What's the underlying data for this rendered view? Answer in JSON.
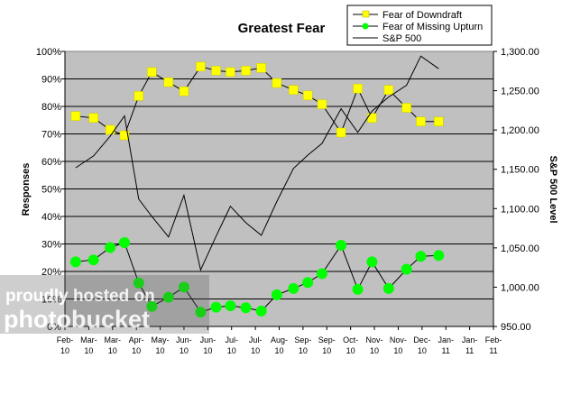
{
  "chart_data": {
    "type": "line",
    "title": "Greatest Fear",
    "ylabel": "Responses",
    "y2label": "S&P 500 Level",
    "ylim": [
      0,
      100
    ],
    "y2lim": [
      950,
      1300
    ],
    "y_ticks": [
      "0%",
      "10%",
      "20%",
      "30%",
      "40%",
      "50%",
      "60%",
      "70%",
      "80%",
      "90%",
      "100%"
    ],
    "y2_ticks": [
      "950.00",
      "1,000.00",
      "1,050.00",
      "1,100.00",
      "1,150.00",
      "1,200.00",
      "1,250.00",
      "1,300.00"
    ],
    "x_ticks": [
      [
        "Feb-",
        "10"
      ],
      [
        "Mar-",
        "10"
      ],
      [
        "Mar-",
        "10"
      ],
      [
        "Apr-",
        "10"
      ],
      [
        "May-",
        "10"
      ],
      [
        "Jun-",
        "10"
      ],
      [
        "Jun-",
        "10"
      ],
      [
        "Jul-",
        "10"
      ],
      [
        "Jul-",
        "10"
      ],
      [
        "Aug-",
        "10"
      ],
      [
        "Sep-",
        "10"
      ],
      [
        "Sep-",
        "10"
      ],
      [
        "Oct-",
        "10"
      ],
      [
        "Nov-",
        "10"
      ],
      [
        "Nov-",
        "10"
      ],
      [
        "Dec-",
        "10"
      ],
      [
        "Jan-",
        "11"
      ],
      [
        "Jan-",
        "11"
      ],
      [
        "Feb-",
        "11"
      ]
    ],
    "grid": true,
    "legend_position": "top-right",
    "series": [
      {
        "name": "Fear of Downdraft",
        "axis": "left",
        "color": "#ffff00",
        "marker": "square",
        "points": [
          [
            0.45,
            76.5
          ],
          [
            1.2,
            75.8
          ],
          [
            1.9,
            71.5
          ],
          [
            2.5,
            69.5
          ],
          [
            3.1,
            83.8
          ],
          [
            3.65,
            92.5
          ],
          [
            4.35,
            88.8
          ],
          [
            5.0,
            85.5
          ],
          [
            5.7,
            94.5
          ],
          [
            6.35,
            93
          ],
          [
            6.95,
            92.5
          ],
          [
            7.6,
            93
          ],
          [
            8.25,
            94
          ],
          [
            8.9,
            88.5
          ],
          [
            9.6,
            86
          ],
          [
            10.2,
            84
          ],
          [
            10.8,
            80.8
          ],
          [
            11.6,
            70.5
          ],
          [
            12.3,
            86.5
          ],
          [
            12.9,
            75.8
          ],
          [
            13.6,
            86
          ],
          [
            14.35,
            79.5
          ],
          [
            14.95,
            74.5
          ],
          [
            15.7,
            74.5
          ]
        ]
      },
      {
        "name": "Fear of Missing Upturn",
        "axis": "left",
        "color": "#00ff00",
        "marker": "circle",
        "points": [
          [
            0.45,
            23.5
          ],
          [
            1.2,
            24.2
          ],
          [
            1.9,
            28.7
          ],
          [
            2.5,
            30.5
          ],
          [
            3.1,
            15.8
          ],
          [
            3.65,
            7.3
          ],
          [
            4.35,
            10.6
          ],
          [
            5.0,
            14.3
          ],
          [
            5.7,
            5.2
          ],
          [
            6.35,
            7
          ],
          [
            6.95,
            7.5
          ],
          [
            7.6,
            6.8
          ],
          [
            8.25,
            5.6
          ],
          [
            8.9,
            11.5
          ],
          [
            9.6,
            13.8
          ],
          [
            10.2,
            16
          ],
          [
            10.8,
            19.2
          ],
          [
            11.6,
            29.5
          ],
          [
            12.3,
            13.5
          ],
          [
            12.9,
            23.5
          ],
          [
            13.6,
            13.8
          ],
          [
            14.35,
            20.8
          ],
          [
            14.95,
            25.5
          ],
          [
            15.7,
            25.8
          ]
        ]
      },
      {
        "name": "S&P 500",
        "axis": "right",
        "color": "#000000",
        "marker": "none",
        "points": [
          [
            0.45,
            1152
          ],
          [
            1.2,
            1167
          ],
          [
            1.9,
            1192
          ],
          [
            2.5,
            1218
          ],
          [
            3.1,
            1112
          ],
          [
            3.65,
            1090
          ],
          [
            4.35,
            1064
          ],
          [
            5.0,
            1117
          ],
          [
            5.7,
            1022
          ],
          [
            6.35,
            1065
          ],
          [
            6.95,
            1103
          ],
          [
            7.6,
            1082
          ],
          [
            8.25,
            1066
          ],
          [
            8.9,
            1109
          ],
          [
            9.6,
            1151
          ],
          [
            10.2,
            1168
          ],
          [
            10.8,
            1183
          ],
          [
            11.6,
            1227
          ],
          [
            12.3,
            1197
          ],
          [
            12.9,
            1224
          ],
          [
            13.6,
            1242
          ],
          [
            14.35,
            1257
          ],
          [
            14.95,
            1294
          ],
          [
            15.7,
            1278
          ]
        ]
      }
    ]
  },
  "watermark": {
    "line1": "proudly hosted on",
    "line2": "photobucket"
  }
}
